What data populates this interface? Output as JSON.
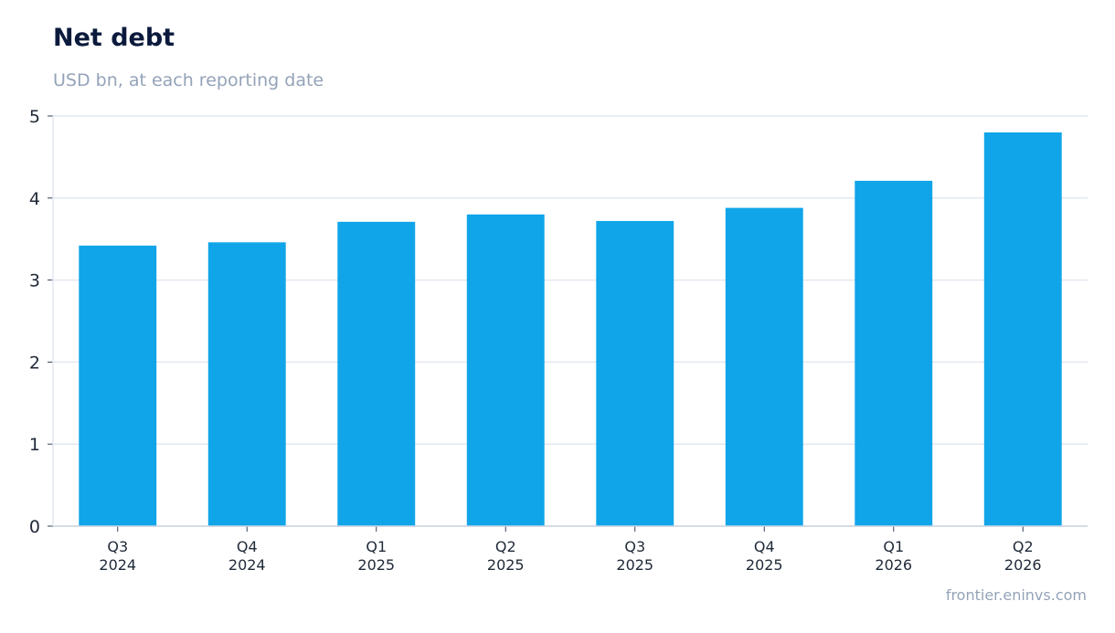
{
  "header": {
    "title": "Net debt",
    "subtitle": "USD bn, at each reporting date"
  },
  "footer": {
    "source": "frontier.eninvs.com"
  },
  "colors": {
    "bar": "#10a5e8",
    "grid": "#e2e8f0",
    "title": "#0b1a3c",
    "muted": "#94a3b8"
  },
  "chart_data": {
    "type": "bar",
    "title": "Net debt",
    "subtitle": "USD bn, at each reporting date",
    "xlabel": "",
    "ylabel": "",
    "categories": [
      [
        "Q3",
        "2024"
      ],
      [
        "Q4",
        "2024"
      ],
      [
        "Q1",
        "2025"
      ],
      [
        "Q2",
        "2025"
      ],
      [
        "Q3",
        "2025"
      ],
      [
        "Q4",
        "2025"
      ],
      [
        "Q1",
        "2026"
      ],
      [
        "Q2",
        "2026"
      ]
    ],
    "values": [
      3.42,
      3.46,
      3.71,
      3.8,
      3.72,
      3.88,
      4.21,
      4.8
    ],
    "ylim": [
      0,
      5
    ],
    "yticks": [
      "0",
      "1",
      "2",
      "3",
      "4",
      "5"
    ],
    "grid": true,
    "legend": "none"
  }
}
